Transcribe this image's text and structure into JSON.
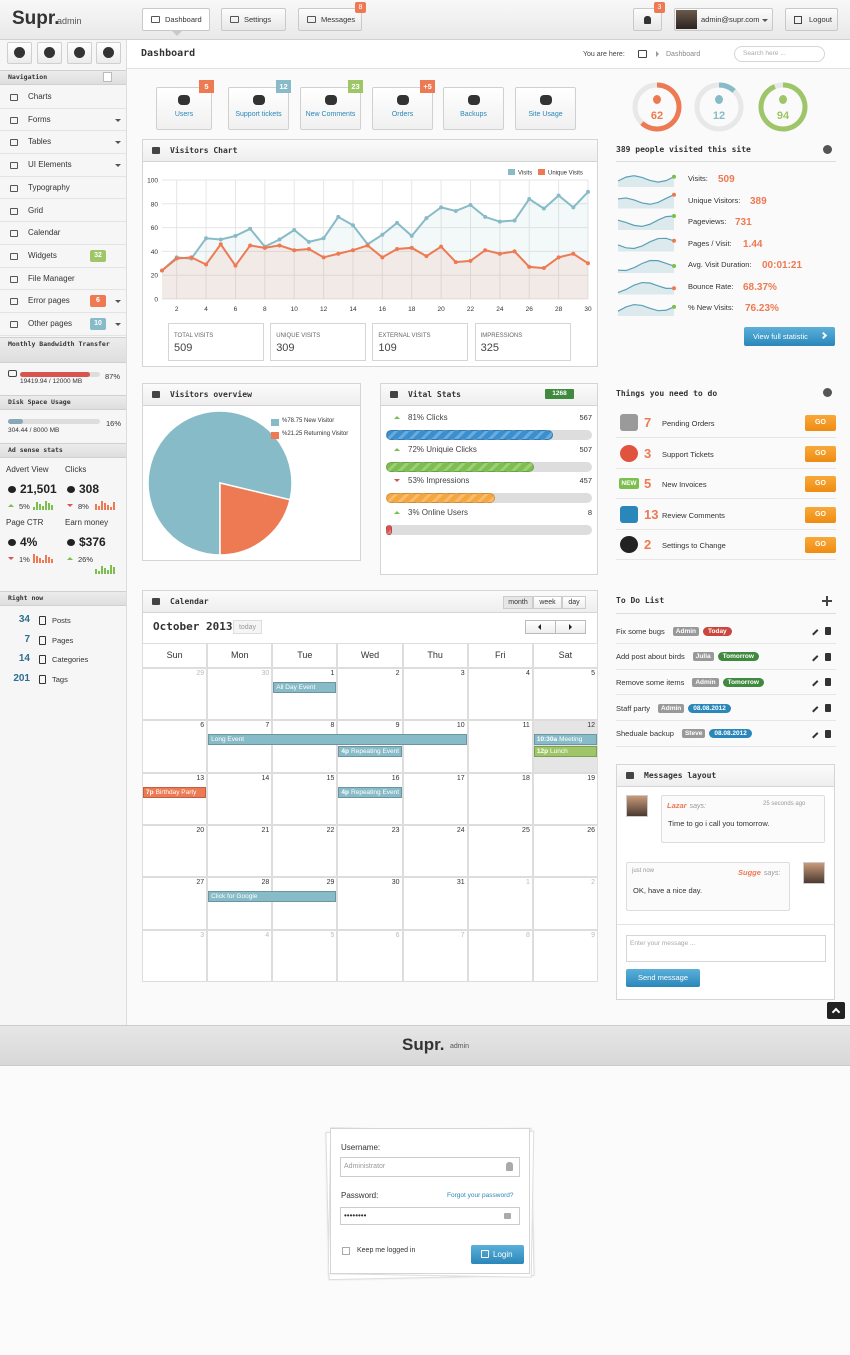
{
  "header": {
    "logo": "Supr.",
    "logo_sub": "admin",
    "nav": [
      "Dashboard",
      "Settings",
      "Messages"
    ],
    "messages_badge": 8,
    "notifications_badge": 3,
    "user": "admin@supr.com",
    "logout": "Logout"
  },
  "sidebar": {
    "nav_title": "Navigation",
    "nav_items": [
      {
        "label": "Charts"
      },
      {
        "label": "Forms",
        "submenu": true
      },
      {
        "label": "Tables",
        "submenu": true
      },
      {
        "label": "UI Elements",
        "submenu": true
      },
      {
        "label": "Typography"
      },
      {
        "label": "Grid"
      },
      {
        "label": "Calendar"
      },
      {
        "label": "Widgets",
        "badge": 32,
        "badge_color": "#9fc569"
      },
      {
        "label": "File Manager"
      },
      {
        "label": "Error pages",
        "badge": 6,
        "badge_color": "#ed7a53",
        "submenu": true
      },
      {
        "label": "Other pages",
        "badge": 10,
        "badge_color": "#88bbc8",
        "submenu": true
      }
    ],
    "bandwidth": {
      "title": "Monthly Bandwidth Transfer",
      "usage": "19419.94 / 12000 MB",
      "percent": 87,
      "percent_label": "87%",
      "color": "#d9534f"
    },
    "disk": {
      "title": "Disk Space Usage",
      "usage": "304.44 / 8000 MB",
      "percent": 16,
      "percent_label": "16%",
      "color": "#88a8b8"
    },
    "adsense": {
      "title": "Ad sense stats",
      "stats": [
        {
          "label": "Advert View",
          "value": "21,501",
          "change": "5%",
          "trend": "up"
        },
        {
          "label": "Clicks",
          "value": "308",
          "change": "8%",
          "trend": "down"
        },
        {
          "label": "Page CTR",
          "value": "4%",
          "change": "1%",
          "trend": "down"
        },
        {
          "label": "Earn money",
          "value": "$376",
          "change": "26%",
          "trend": "up"
        }
      ]
    },
    "right_now": {
      "title": "Right now",
      "items": [
        {
          "count": 34,
          "label": "Posts"
        },
        {
          "count": 7,
          "label": "Pages"
        },
        {
          "count": 14,
          "label": "Categories"
        },
        {
          "count": 201,
          "label": "Tags"
        }
      ]
    }
  },
  "breadcrumb": {
    "page_title": "Dashboard",
    "you_are_here": "You are here:",
    "current": "Dashboard",
    "search_placeholder": "Search here ..."
  },
  "quick_buttons": [
    {
      "label": "Users",
      "badge": 5,
      "badge_color": "#ed7a53"
    },
    {
      "label": "Support tickets",
      "badge": 12,
      "badge_color": "#88bbc8"
    },
    {
      "label": "New Comments",
      "badge": 23,
      "badge_color": "#9fc569"
    },
    {
      "label": "Orders",
      "badge": "+5",
      "badge_color": "#ed7a53"
    },
    {
      "label": "Backups"
    },
    {
      "label": "Site Usage"
    }
  ],
  "donuts": [
    {
      "value": 62,
      "color": "#ed7a53"
    },
    {
      "value": 12,
      "color": "#88bbc8"
    },
    {
      "value": 94,
      "color": "#9fc569"
    }
  ],
  "visitors_chart": {
    "type": "line",
    "title": "Visitors Chart",
    "x": [
      1,
      2,
      3,
      4,
      5,
      6,
      7,
      8,
      9,
      10,
      11,
      12,
      13,
      14,
      15,
      16,
      17,
      18,
      19,
      20,
      21,
      22,
      23,
      24,
      25,
      26,
      27,
      28,
      29,
      30
    ],
    "series": [
      {
        "name": "Visits",
        "color": "#88bbc8",
        "values": [
          24,
          35,
          34,
          51,
          50,
          53,
          59,
          44,
          50,
          58,
          48,
          51,
          69,
          62,
          46,
          54,
          64,
          53,
          68,
          77,
          74,
          79,
          69,
          65,
          66,
          84,
          76,
          87,
          77,
          90
        ]
      },
      {
        "name": "Unique Visits",
        "color": "#ed7a53",
        "values": [
          24,
          34,
          35,
          29,
          46,
          28,
          45,
          43,
          45,
          41,
          42,
          35,
          38,
          41,
          45,
          35,
          42,
          43,
          36,
          44,
          31,
          32,
          41,
          38,
          40,
          27,
          26,
          35,
          38,
          30
        ]
      }
    ],
    "xlim": [
      1,
      30
    ],
    "xticks": [
      2,
      4,
      6,
      8,
      10,
      12,
      14,
      16,
      18,
      20,
      22,
      24,
      26,
      28,
      30
    ],
    "ylim": [
      0,
      100
    ],
    "yticks": [
      0,
      20,
      40,
      60,
      80,
      100
    ],
    "grid": true,
    "totals": [
      {
        "label": "TOTAL VISITS",
        "value": 509
      },
      {
        "label": "UNIQUE VISITS",
        "value": 309
      },
      {
        "label": "EXTERNAL VISITS",
        "value": 109
      },
      {
        "label": "IMPRESSIONS",
        "value": 325
      }
    ]
  },
  "site_stats": {
    "title": "389 people visited this site",
    "rows": [
      {
        "label": "Visits:",
        "value": "509"
      },
      {
        "label": "Unique Visitors:",
        "value": "389"
      },
      {
        "label": "Pageviews:",
        "value": "731"
      },
      {
        "label": "Pages / Visit:",
        "value": "1.44"
      },
      {
        "label": "Avg. Visit Duration:",
        "value": "00:01:21"
      },
      {
        "label": "Bounce Rate:",
        "value": "68.37%"
      },
      {
        "label": "% New Visits:",
        "value": "76.23%"
      }
    ],
    "button": "View full statistic"
  },
  "visitors_overview": {
    "type": "pie",
    "title": "Visitors overview",
    "labels": [
      "%78.75 New Visitor",
      "%21.25 Returning Visitor"
    ],
    "values": [
      78.75,
      21.25
    ],
    "colors": [
      "#88bbc8",
      "#ed7a53"
    ]
  },
  "vital_stats": {
    "title": "Vital Stats",
    "badge": 1268,
    "rows": [
      {
        "label": "81% Clicks",
        "percent": 81,
        "count": 567,
        "trend": "up",
        "color": "#3a8fd0"
      },
      {
        "label": "72% Uniquie Clicks",
        "percent": 72,
        "count": 507,
        "trend": "up",
        "color": "#7cbf4e"
      },
      {
        "label": "53% Impressions",
        "percent": 53,
        "count": 457,
        "trend": "down",
        "color": "#f5a63f"
      },
      {
        "label": "3% Online Users",
        "percent": 3,
        "count": 8,
        "trend": "up",
        "color": "#d9534f"
      }
    ]
  },
  "things_to_do": {
    "title": "Things you need to do",
    "new_badge": "NEW",
    "button": "GO",
    "items": [
      {
        "count": 7,
        "label": "Pending Orders"
      },
      {
        "count": 3,
        "label": "Support Tickets"
      },
      {
        "count": 5,
        "label": "New Invoices"
      },
      {
        "count": 13,
        "label": "Review Comments"
      },
      {
        "count": 2,
        "label": "Settings to Change"
      }
    ]
  },
  "calendar": {
    "title": "Calendar",
    "views": [
      "month",
      "week",
      "day"
    ],
    "month_label": "October 2013",
    "today_button": "today",
    "weekdays": [
      "Sun",
      "Mon",
      "Tue",
      "Wed",
      "Thu",
      "Fri",
      "Sat"
    ],
    "weeks": [
      [
        29,
        30,
        1,
        2,
        3,
        4,
        5
      ],
      [
        6,
        7,
        8,
        9,
        10,
        11,
        12
      ],
      [
        13,
        14,
        15,
        16,
        17,
        18,
        19
      ],
      [
        20,
        21,
        22,
        23,
        24,
        25,
        26
      ],
      [
        27,
        28,
        29,
        30,
        31,
        1,
        2
      ],
      [
        3,
        4,
        5,
        6,
        7,
        8,
        9
      ]
    ],
    "today": 12,
    "events": [
      {
        "title": "All Day Event",
        "start": 1,
        "end": 1,
        "color": "#88bbc8"
      },
      {
        "title": "Long Event",
        "start": 7,
        "end": 10,
        "color": "#88bbc8"
      },
      {
        "time": "4p",
        "title": "Repeating Event",
        "start": 9,
        "end": 9,
        "color": "#88bbc8"
      },
      {
        "time": "10:30a",
        "title": "Meeting",
        "start": 12,
        "end": 12,
        "color": "#88bbc8"
      },
      {
        "time": "12p",
        "title": "Lunch",
        "start": 12,
        "end": 12,
        "color": "#9fc569"
      },
      {
        "time": "7p",
        "title": "Birthday Party",
        "start": 13,
        "end": 13,
        "color": "#ed7a53"
      },
      {
        "time": "4p",
        "title": "Repeating Event",
        "start": 16,
        "end": 16,
        "color": "#88bbc8"
      },
      {
        "title": "Click for Google",
        "start": 28,
        "end": 29,
        "color": "#88bbc8"
      }
    ]
  },
  "todo": {
    "title": "To Do List",
    "items": [
      {
        "task": "Fix some bugs",
        "user": "Admin",
        "due": "Today",
        "due_color": "#c9473f"
      },
      {
        "task": "Add post about birds",
        "user": "Julia",
        "due": "Tomorrow",
        "due_color": "#3f8a3f"
      },
      {
        "task": "Remove some items",
        "user": "Admin",
        "due": "Tomorrow",
        "due_color": "#3f8a3f"
      },
      {
        "task": "Staff party",
        "user": "Admin",
        "due": "08.08.2012",
        "due_color": "#2a87b9"
      },
      {
        "task": "Sheduale backup",
        "user": "Steve",
        "due": "08.08.2012",
        "due_color": "#2a87b9"
      }
    ]
  },
  "messages": {
    "title": "Messages layout",
    "items": [
      {
        "name": "Lazar",
        "says": "says:",
        "time": "25 seconds ago",
        "text": "Time to go i call you tomorrow.",
        "side": "left"
      },
      {
        "name": "Sugge",
        "says": "says:",
        "time": "just now",
        "text": "OK, have a nice day.",
        "side": "right"
      }
    ],
    "placeholder": "Enter your message ...",
    "button": "Send message"
  },
  "footer": {
    "logo": "Supr.",
    "logo_sub": "admin"
  },
  "login": {
    "username_label": "Username:",
    "username_value": "Administrator",
    "password_label": "Password:",
    "forgot": "Forgot your password?",
    "password_value": "••••••••",
    "remember": "Keep me logged in",
    "button": "Login"
  }
}
